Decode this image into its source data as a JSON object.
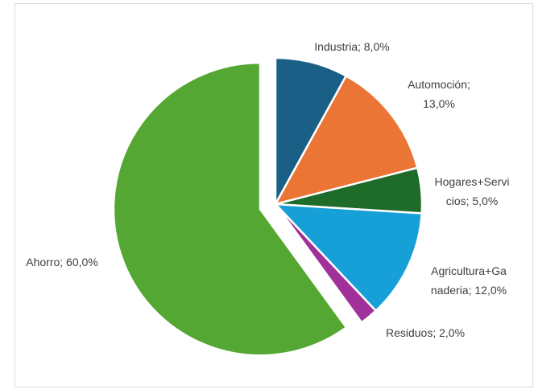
{
  "chart_data": {
    "type": "pie",
    "title": "",
    "slices": [
      {
        "label": "Industria",
        "value": 8.0,
        "label_lines": [
          "Industria; 8,0%"
        ],
        "color": "#1a5f86",
        "exploded": false
      },
      {
        "label": "Automoción",
        "value": 13.0,
        "label_lines": [
          "Automoción;",
          "13,0%"
        ],
        "color": "#ea7535",
        "exploded": false
      },
      {
        "label": "Hogares+Servicios",
        "value": 5.0,
        "label_lines": [
          "Hogares+Servi",
          "cios; 5,0%"
        ],
        "color": "#1f6b2a",
        "exploded": false
      },
      {
        "label": "Agricultura+Ganaderia",
        "value": 12.0,
        "label_lines": [
          "Agricultura+Ga",
          "naderia; 12,0%"
        ],
        "color": "#179fd8",
        "exploded": false
      },
      {
        "label": "Residuos",
        "value": 2.0,
        "label_lines": [
          "Residuos; 2,0%"
        ],
        "color": "#a0319a",
        "exploded": false
      },
      {
        "label": "Ahorro",
        "value": 60.0,
        "label_lines": [
          "Ahorro; 60,0%"
        ],
        "color": "#54a732",
        "exploded": true
      }
    ],
    "legend": "none",
    "start_angle": "12 o'clock",
    "direction": "clockwise"
  }
}
